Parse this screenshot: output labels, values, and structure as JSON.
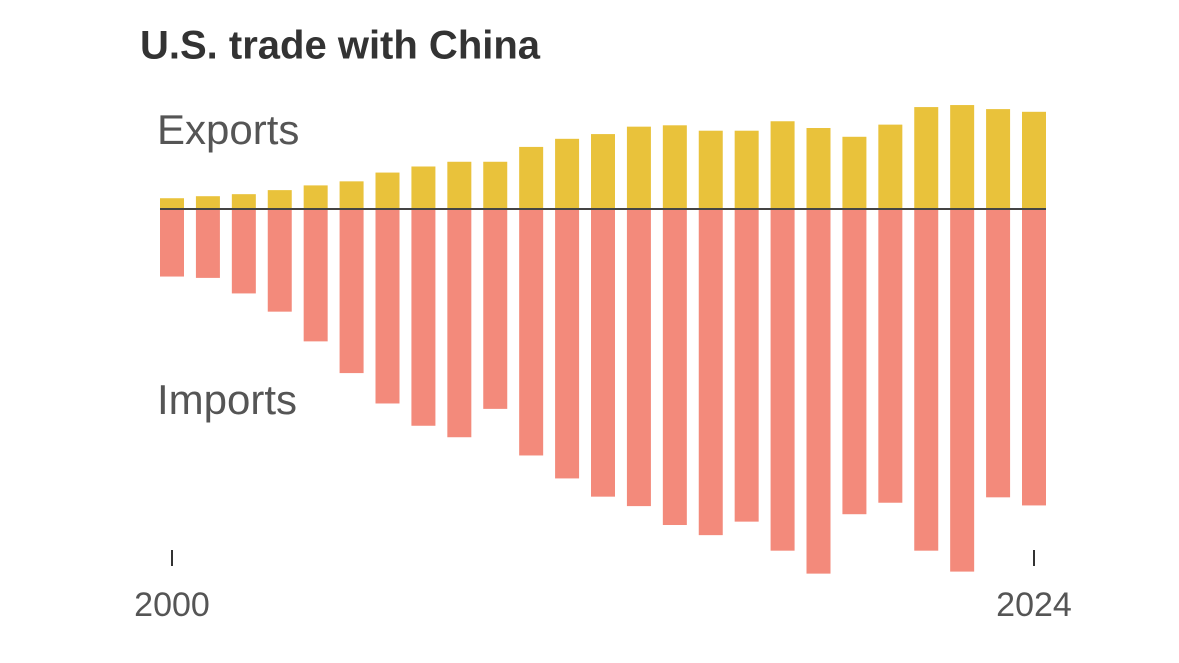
{
  "chart_data": {
    "type": "bar",
    "title": "U.S. trade with China",
    "categories": [
      "2000",
      null,
      null,
      null,
      null,
      null,
      null,
      null,
      null,
      null,
      null,
      null,
      null,
      null,
      null,
      null,
      null,
      null,
      null,
      null,
      null,
      null,
      null,
      null,
      "2024"
    ],
    "series": [
      {
        "name": "Exports",
        "color": "#e9c23b",
        "values": [
          16,
          19,
          22,
          28,
          35,
          41,
          54,
          63,
          70,
          70,
          92,
          104,
          111,
          122,
          124,
          116,
          116,
          130,
          120,
          107,
          125,
          151,
          154,
          148,
          144
        ]
      },
      {
        "name": "Imports",
        "color": "#f38a7b",
        "values": [
          -100,
          -102,
          -125,
          -152,
          -196,
          -243,
          -288,
          -321,
          -338,
          -296,
          -365,
          -399,
          -426,
          -440,
          -468,
          -483,
          -463,
          -506,
          -540,
          -452,
          -435,
          -506,
          -537,
          -427,
          -439
        ]
      }
    ],
    "ylim": [
      -545,
      160
    ]
  }
}
